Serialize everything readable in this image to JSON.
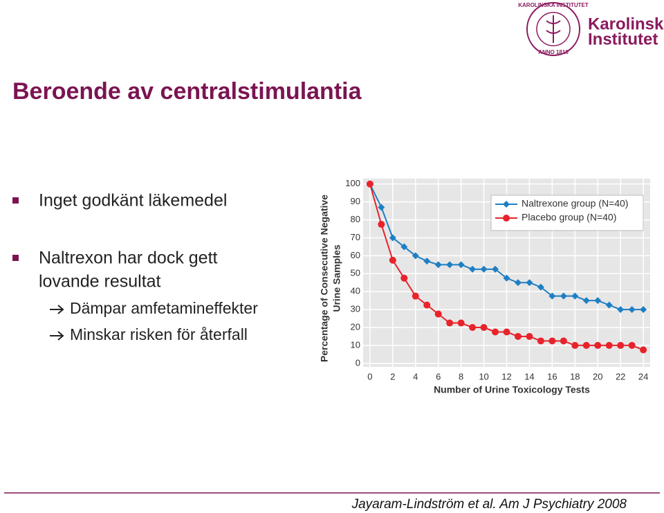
{
  "slide": {
    "title": "Beroende av centralstimulantia",
    "bullets": [
      {
        "lines": [
          "Inget godkänt läkemedel"
        ]
      },
      {
        "lines": [
          "Naltrexon har dock gett",
          "lovande resultat"
        ],
        "sub": [
          "Dämpar amfetamineffekter",
          "Minskar risken för återfall"
        ]
      }
    ],
    "logo": {
      "name": [
        "Karolinska",
        "Institutet"
      ],
      "seal": [
        "KAROLINSKA INSTITUTET",
        "ANNO 1810"
      ]
    },
    "citation": "Jayaram-Lindström et al. Am J Psychiatry 2008"
  },
  "chart_data": {
    "type": "line",
    "ylabel": [
      "Percentage of Consecutive Negative",
      "Urine Samples"
    ],
    "xlabel": "Number of Urine Toxicology Tests",
    "x": [
      0,
      1,
      2,
      3,
      4,
      5,
      6,
      7,
      8,
      9,
      10,
      11,
      12,
      13,
      14,
      15,
      16,
      17,
      18,
      19,
      20,
      21,
      22,
      23,
      24
    ],
    "series": [
      {
        "name": "Naltrexone group (N=40)",
        "color": "#1f7fc4",
        "marker": "diamond",
        "values": [
          100,
          87,
          70,
          65,
          60,
          57,
          55,
          55,
          55,
          52.5,
          52.5,
          52.5,
          47.5,
          45,
          45,
          42.5,
          37.5,
          37.5,
          37.5,
          35,
          35,
          32.5,
          30,
          30,
          30
        ]
      },
      {
        "name": "Placebo group (N=40)",
        "color": "#e8232b",
        "marker": "circle",
        "values": [
          100,
          77.5,
          57.5,
          47.5,
          37.5,
          32.5,
          27.5,
          22.5,
          22.5,
          20,
          20,
          17.5,
          17.5,
          15,
          15,
          12.5,
          12.5,
          12.5,
          10,
          10,
          10,
          10,
          10,
          10,
          7.5
        ]
      }
    ],
    "xlim": [
      -0.6,
      24.6
    ],
    "ylim": [
      -2,
      103
    ],
    "xticks": [
      0,
      2,
      4,
      6,
      8,
      10,
      12,
      14,
      16,
      18,
      20,
      22,
      24
    ],
    "yticks": [
      0,
      10,
      20,
      30,
      40,
      50,
      60,
      70,
      80,
      90,
      100
    ],
    "grid": true,
    "legend": "upper right"
  }
}
